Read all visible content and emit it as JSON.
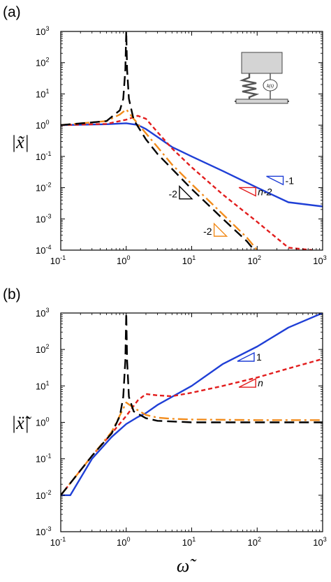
{
  "figure": {
    "xlabel": "ω̃"
  },
  "chart_data": [
    {
      "type": "line",
      "panel_label": "(a)",
      "ylabel": "|x̃|",
      "xscale": "log",
      "yscale": "log",
      "xlim": [
        0.1,
        1000
      ],
      "ylim": [
        0.0001,
        1000
      ],
      "x_ticks": [
        "10-1",
        "100",
        "101",
        "102",
        "103"
      ],
      "y_ticks": [
        "10-4",
        "10-3",
        "10-2",
        "10-1",
        "100",
        "101",
        "102",
        "103"
      ],
      "inset": "spring-mass-icon",
      "inset_label": "k(t)",
      "series": [
        {
          "color": "#1f3fd6",
          "dash": "solid",
          "points": [
            [
              0.1,
              1
            ],
            [
              0.5,
              1.07
            ],
            [
              1,
              1.15
            ],
            [
              1.5,
              1.02
            ],
            [
              2,
              0.75
            ],
            [
              3,
              0.42
            ],
            [
              5,
              0.2
            ],
            [
              10,
              0.1
            ],
            [
              30,
              0.034
            ],
            [
              100,
              0.01
            ],
            [
              300,
              0.0034
            ],
            [
              1000,
              0.0025
            ]
          ]
        },
        {
          "color": "#e21d1d",
          "dash": "short",
          "points": [
            [
              0.1,
              1
            ],
            [
              0.5,
              1.1
            ],
            [
              1,
              1.5
            ],
            [
              1.5,
              2
            ],
            [
              2,
              1.6
            ],
            [
              3,
              0.6
            ],
            [
              5,
              0.18
            ],
            [
              10,
              0.045
            ],
            [
              30,
              0.006
            ],
            [
              100,
              0.0008
            ],
            [
              300,
              0.00012
            ],
            [
              700,
              0.0001
            ]
          ]
        },
        {
          "color": "#f28c1c",
          "dash": "dashdot",
          "points": [
            [
              0.1,
              1
            ],
            [
              0.5,
              1.35
            ],
            [
              0.8,
              2.2
            ],
            [
              1,
              3.2
            ],
            [
              1.3,
              1.6
            ],
            [
              2,
              0.55
            ],
            [
              3,
              0.2
            ],
            [
              5,
              0.055
            ],
            [
              10,
              0.013
            ],
            [
              30,
              0.0014
            ],
            [
              70,
              0.00025
            ],
            [
              100,
              0.0001
            ]
          ]
        },
        {
          "color": "#000000",
          "dash": "long",
          "points": [
            [
              0.1,
              1
            ],
            [
              0.5,
              1.35
            ],
            [
              0.8,
              3
            ],
            [
              0.9,
              7
            ],
            [
              0.97,
              60
            ],
            [
              1,
              1000
            ],
            [
              1.03,
              60
            ],
            [
              1.1,
              7
            ],
            [
              1.3,
              1.5
            ],
            [
              2,
              0.35
            ],
            [
              3,
              0.12
            ],
            [
              5,
              0.04
            ],
            [
              10,
              0.009
            ],
            [
              30,
              0.001
            ],
            [
              70,
              0.00019
            ],
            [
              90,
              0.0001
            ]
          ]
        }
      ],
      "slope_annotations": [
        {
          "label": "-1",
          "color": "#1f3fd6",
          "at": [
            250,
            0.017
          ]
        },
        {
          "label": "n-2",
          "color": "#e21d1d",
          "at": [
            95,
            0.0074
          ]
        },
        {
          "label": "-2",
          "color": "#000000",
          "at": [
            6.5,
            0.0066
          ]
        },
        {
          "label": "-2",
          "color": "#f28c1c",
          "at": [
            22,
            0.00042
          ]
        }
      ]
    },
    {
      "type": "line",
      "panel_label": "(b)",
      "ylabel": "|ẍ̃|",
      "xscale": "log",
      "yscale": "log",
      "xlim": [
        0.1,
        1000
      ],
      "ylim": [
        0.001,
        1000
      ],
      "x_ticks": [
        "10-1",
        "100",
        "101",
        "102",
        "103"
      ],
      "y_ticks": [
        "10-3",
        "10-2",
        "10-1",
        "100",
        "101",
        "102",
        "103"
      ],
      "series": [
        {
          "color": "#1f3fd6",
          "dash": "solid",
          "points": [
            [
              0.1,
              0.01
            ],
            [
              0.14,
              0.01
            ],
            [
              0.3,
              0.1
            ],
            [
              0.6,
              0.4
            ],
            [
              1,
              0.9
            ],
            [
              1.5,
              1.4
            ],
            [
              2,
              1.8
            ],
            [
              3,
              3
            ],
            [
              5,
              5
            ],
            [
              10,
              10
            ],
            [
              30,
              40
            ],
            [
              100,
              120
            ],
            [
              300,
              400
            ],
            [
              1000,
              1000
            ]
          ]
        },
        {
          "color": "#e21d1d",
          "dash": "short",
          "points": [
            [
              0.1,
              0.01
            ],
            [
              0.3,
              0.12
            ],
            [
              0.6,
              0.5
            ],
            [
              1,
              1.5
            ],
            [
              1.5,
              4
            ],
            [
              2,
              6
            ],
            [
              3,
              5.5
            ],
            [
              5,
              5.2
            ],
            [
              10,
              6.5
            ],
            [
              30,
              10
            ],
            [
              100,
              17
            ],
            [
              300,
              30
            ],
            [
              1000,
              55
            ]
          ]
        },
        {
          "color": "#f28c1c",
          "dash": "dashdot",
          "points": [
            [
              0.1,
              0.01
            ],
            [
              0.3,
              0.12
            ],
            [
              0.6,
              0.55
            ],
            [
              1,
              3.5
            ],
            [
              1.3,
              2.5
            ],
            [
              2,
              1.6
            ],
            [
              3,
              1.35
            ],
            [
              5,
              1.25
            ],
            [
              10,
              1.2
            ],
            [
              100,
              1.15
            ],
            [
              1000,
              1.15
            ]
          ]
        },
        {
          "color": "#000000",
          "dash": "long",
          "points": [
            [
              0.1,
              0.01
            ],
            [
              0.3,
              0.12
            ],
            [
              0.6,
              0.5
            ],
            [
              0.8,
              1.5
            ],
            [
              0.9,
              5
            ],
            [
              0.97,
              50
            ],
            [
              1,
              1000
            ],
            [
              1.03,
              50
            ],
            [
              1.1,
              5
            ],
            [
              1.3,
              2
            ],
            [
              2,
              1.3
            ],
            [
              3,
              1.1
            ],
            [
              10,
              1
            ],
            [
              100,
              1
            ],
            [
              1000,
              1
            ]
          ]
        }
      ],
      "slope_annotations": [
        {
          "label": "1",
          "color": "#1f3fd6",
          "at": [
            90,
            62
          ]
        },
        {
          "label": "n",
          "color": "#e21d1d",
          "at": [
            95,
            12
          ]
        }
      ]
    }
  ]
}
